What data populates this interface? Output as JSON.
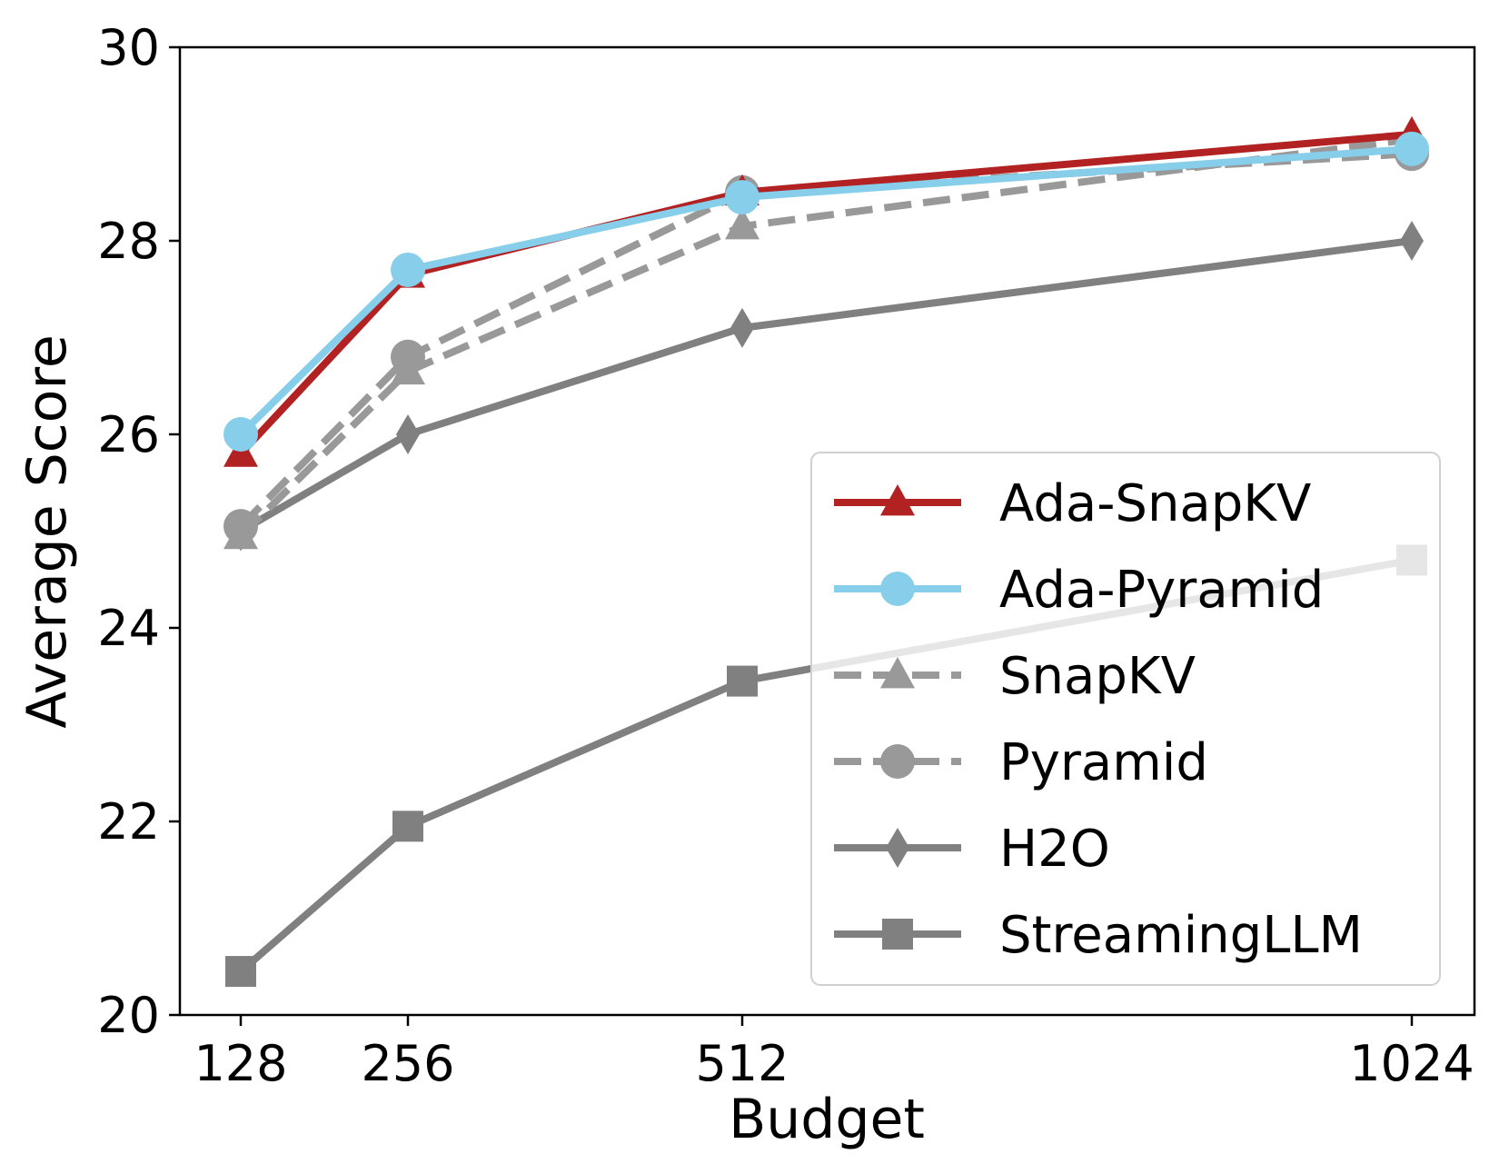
{
  "chart_data": {
    "type": "line",
    "xlabel": "Budget",
    "ylabel": "Average Score",
    "x": [
      128,
      256,
      512,
      1024
    ],
    "x_tick_labels": [
      "128",
      "256",
      "512",
      "1024"
    ],
    "y_ticks": [
      20,
      22,
      24,
      26,
      28,
      30
    ],
    "y_tick_labels": [
      "20",
      "22",
      "24",
      "26",
      "28",
      "30"
    ],
    "ylim": [
      20,
      30
    ],
    "x_scale": "log2",
    "grid": false,
    "legend_position": "lower-right",
    "series": [
      {
        "name": "Ada-SnapKV",
        "values": [
          25.8,
          27.65,
          28.5,
          29.1
        ],
        "color": "#b22222",
        "marker": "triangle",
        "dash": "solid"
      },
      {
        "name": "Ada-Pyramid",
        "values": [
          26.0,
          27.7,
          28.45,
          28.95
        ],
        "color": "#87ceeb",
        "marker": "circle",
        "dash": "solid"
      },
      {
        "name": "SnapKV",
        "values": [
          24.95,
          26.65,
          28.15,
          29.05
        ],
        "color": "#999999",
        "marker": "triangle",
        "dash": "dashed"
      },
      {
        "name": "Pyramid",
        "values": [
          25.05,
          26.8,
          28.5,
          28.9
        ],
        "color": "#999999",
        "marker": "circle",
        "dash": "dashed"
      },
      {
        "name": "H2O",
        "values": [
          25.0,
          26.0,
          27.1,
          28.0
        ],
        "color": "#808080",
        "marker": "diamond",
        "dash": "solid"
      },
      {
        "name": "StreamingLLM",
        "values": [
          20.45,
          21.95,
          23.45,
          24.7
        ],
        "color": "#808080",
        "marker": "square",
        "dash": "solid"
      }
    ]
  }
}
